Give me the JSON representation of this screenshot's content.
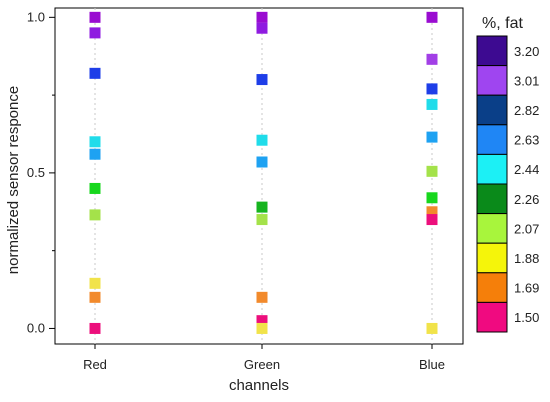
{
  "chart_data": {
    "type": "scatter",
    "xlabel": "channels",
    "ylabel": "normalized sensor responce",
    "categories": [
      "Red",
      "Green",
      "Blue"
    ],
    "y_ticks": [
      "0.0",
      "0.5",
      "1.0"
    ],
    "ylim": [
      -0.05,
      1.03
    ],
    "grid": "vertical dotted at categories",
    "legend": {
      "title": "%, fat",
      "placement": "right",
      "entries": [
        {
          "label": "3.20",
          "color": "#3d0a91"
        },
        {
          "label": "3.01",
          "color": "#9f45f0"
        },
        {
          "label": "2.82",
          "color": "#0a3f88"
        },
        {
          "label": "2.63",
          "color": "#1f86f5"
        },
        {
          "label": "2.44",
          "color": "#1cf0f5"
        },
        {
          "label": "2.26",
          "color": "#0a8a1a"
        },
        {
          "label": "2.07",
          "color": "#a8f53c"
        },
        {
          "label": "1.88",
          "color": "#f5f50a"
        },
        {
          "label": "1.69",
          "color": "#f57f0a"
        },
        {
          "label": "1.50",
          "color": "#f00a80"
        }
      ]
    },
    "points": [
      {
        "x": "Red",
        "y": 1.0,
        "color": "#9a0cd1"
      },
      {
        "x": "Red",
        "y": 0.95,
        "color": "#8f1be0"
      },
      {
        "x": "Red",
        "y": 0.82,
        "color": "#1e3ee8"
      },
      {
        "x": "Red",
        "y": 0.6,
        "color": "#20dcea"
      },
      {
        "x": "Red",
        "y": 0.56,
        "color": "#1ea2f2"
      },
      {
        "x": "Red",
        "y": 0.45,
        "color": "#17d71d"
      },
      {
        "x": "Red",
        "y": 0.365,
        "color": "#a4e24a"
      },
      {
        "x": "Red",
        "y": 0.145,
        "color": "#f1e34a"
      },
      {
        "x": "Red",
        "y": 0.1,
        "color": "#f28a2c"
      },
      {
        "x": "Red",
        "y": 0.0,
        "color": "#ec0f7c"
      },
      {
        "x": "Green",
        "y": 1.0,
        "color": "#9a0cd1"
      },
      {
        "x": "Green",
        "y": 0.965,
        "color": "#8f1be0"
      },
      {
        "x": "Green",
        "y": 0.8,
        "color": "#1e3ee8"
      },
      {
        "x": "Green",
        "y": 0.605,
        "color": "#20dcea"
      },
      {
        "x": "Green",
        "y": 0.535,
        "color": "#1ea2f2"
      },
      {
        "x": "Green",
        "y": 0.39,
        "color": "#16b41f"
      },
      {
        "x": "Green",
        "y": 0.35,
        "color": "#a4e24a"
      },
      {
        "x": "Green",
        "y": 0.1,
        "color": "#f28a2c"
      },
      {
        "x": "Green",
        "y": 0.025,
        "color": "#ec0f7c"
      },
      {
        "x": "Green",
        "y": 0.0,
        "color": "#f1e34a"
      },
      {
        "x": "Blue",
        "y": 1.0,
        "color": "#9a0cd1"
      },
      {
        "x": "Blue",
        "y": 0.865,
        "color": "#a23fe6"
      },
      {
        "x": "Blue",
        "y": 0.77,
        "color": "#1e3ee8"
      },
      {
        "x": "Blue",
        "y": 0.72,
        "color": "#20dcea"
      },
      {
        "x": "Blue",
        "y": 0.615,
        "color": "#1ea2f2"
      },
      {
        "x": "Blue",
        "y": 0.505,
        "color": "#a4e24a"
      },
      {
        "x": "Blue",
        "y": 0.42,
        "color": "#17d71d"
      },
      {
        "x": "Blue",
        "y": 0.375,
        "color": "#f28a2c"
      },
      {
        "x": "Blue",
        "y": 0.35,
        "color": "#ec0f7c"
      },
      {
        "x": "Blue",
        "y": 0.0,
        "color": "#f1e34a"
      }
    ]
  }
}
